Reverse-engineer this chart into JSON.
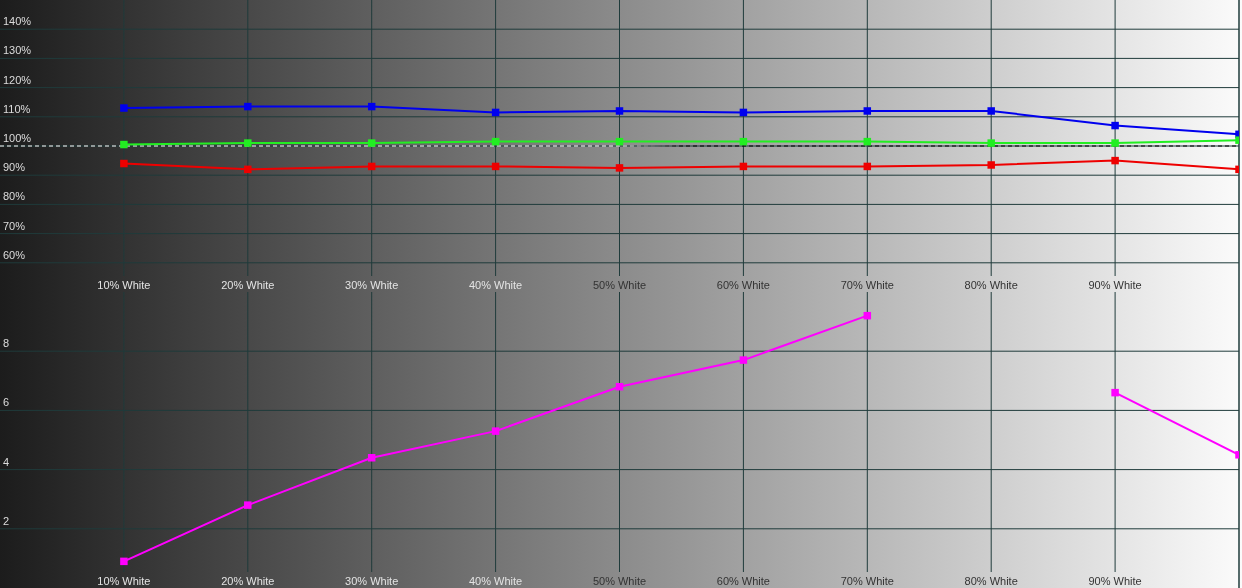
{
  "chart_data": [
    {
      "type": "line",
      "x": [
        10,
        20,
        30,
        40,
        50,
        60,
        70,
        80,
        90,
        100
      ],
      "series": [
        {
          "color": "#0000ee",
          "values": [
            113,
            113.5,
            113.5,
            111.5,
            112,
            111.5,
            112,
            112,
            107,
            104
          ]
        },
        {
          "color": "#22ee22",
          "values": [
            100.5,
            101,
            101,
            101.5,
            101.5,
            101.5,
            101.5,
            101,
            101,
            102
          ]
        },
        {
          "color": "#ee0000",
          "values": [
            94,
            92,
            93,
            93,
            92.5,
            93,
            93,
            93.5,
            95,
            92
          ]
        }
      ],
      "xlim": [
        0,
        100
      ],
      "xticks": [
        {
          "value": 10,
          "label": "10% White"
        },
        {
          "value": 20,
          "label": "20% White"
        },
        {
          "value": 30,
          "label": "30% White"
        },
        {
          "value": 40,
          "label": "40% White"
        },
        {
          "value": 50,
          "label": "50% White"
        },
        {
          "value": 60,
          "label": "60% White"
        },
        {
          "value": 70,
          "label": "70% White"
        },
        {
          "value": 80,
          "label": "80% White"
        },
        {
          "value": 90,
          "label": "90% White"
        }
      ],
      "ylim": [
        50,
        150
      ],
      "yticks": [
        {
          "value": 60,
          "label": "60%"
        },
        {
          "value": 70,
          "label": "70%"
        },
        {
          "value": 80,
          "label": "80%"
        },
        {
          "value": 90,
          "label": "90%"
        },
        {
          "value": 100,
          "label": "100%"
        },
        {
          "value": 110,
          "label": "110%"
        },
        {
          "value": 120,
          "label": "120%"
        },
        {
          "value": 130,
          "label": "130%"
        },
        {
          "value": 140,
          "label": "140%"
        }
      ],
      "grid": true,
      "marker": "square",
      "ref_lines": [
        {
          "axis": "y",
          "value": 100,
          "line_style": "dashed"
        }
      ]
    },
    {
      "type": "line",
      "x": [
        10,
        20,
        30,
        40,
        50,
        60,
        70,
        80,
        90,
        100
      ],
      "series": [
        {
          "color": "#ff00ff",
          "values": [
            0.9,
            2.8,
            4.4,
            5.3,
            6.8,
            7.7,
            9.2,
            null,
            6.6,
            4.5
          ]
        }
      ],
      "xlim": [
        0,
        100
      ],
      "xticks": [
        {
          "value": 10,
          "label": "10% White"
        },
        {
          "value": 20,
          "label": "20% White"
        },
        {
          "value": 30,
          "label": "30% White"
        },
        {
          "value": 40,
          "label": "40% White"
        },
        {
          "value": 50,
          "label": "50% White"
        },
        {
          "value": 60,
          "label": "60% White"
        },
        {
          "value": 70,
          "label": "70% White"
        },
        {
          "value": 80,
          "label": "80% White"
        },
        {
          "value": 90,
          "label": "90% White"
        }
      ],
      "ylim": [
        0,
        10
      ],
      "yticks": [
        2,
        4,
        6,
        8
      ],
      "grid": true,
      "marker": "square"
    }
  ]
}
